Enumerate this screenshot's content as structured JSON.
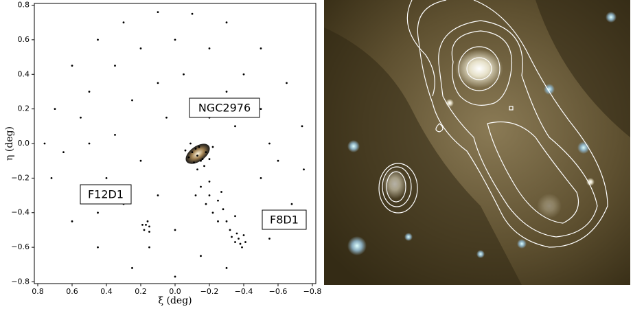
{
  "chart_data": {
    "type": "scatter",
    "xlabel": "ξ (deg)",
    "ylabel": "η (deg)",
    "annotations": [
      "NGC2976",
      "F12D1",
      "F8D1"
    ],
    "color": "#000000",
    "xlim": [
      0.82,
      -0.82
    ],
    "ylim": [
      -0.81,
      0.81
    ],
    "xticks": [
      0.8,
      0.6,
      0.4,
      0.2,
      {
        "value": 0,
        "label": "0.0"
      },
      {
        "value": -0.2,
        "label": "−0.2"
      },
      {
        "value": -0.4,
        "label": "−0.4"
      },
      {
        "value": -0.6,
        "label": "−0.6"
      },
      {
        "value": -0.8,
        "label": "−0.8"
      }
    ],
    "yticks": [
      {
        "value": -0.8,
        "label": "−0.8"
      },
      {
        "value": -0.6,
        "label": "−0.6"
      },
      {
        "value": -0.4,
        "label": "−0.4"
      },
      {
        "value": -0.2,
        "label": "−0.2"
      },
      {
        "value": 0,
        "label": "0.0"
      },
      0.2,
      0.4,
      0.6,
      0.8
    ],
    "x": [
      0.7,
      0.6,
      0.45,
      0.3,
      0.1,
      -0.1,
      -0.3,
      -0.5,
      -0.65,
      -0.74,
      -0.75,
      -0.68,
      -0.55,
      -0.3,
      0,
      0.25,
      0.45,
      0.6,
      0.72,
      0.76,
      0.5,
      0.35,
      0.2,
      0,
      -0.2,
      -0.4,
      -0.5,
      -0.55,
      -0.5,
      0.5,
      0.4,
      0.3,
      0.55,
      0.25,
      0.1,
      -0.05,
      -0.3,
      -0.35,
      0.35,
      0.2,
      0.1,
      0,
      -0.15,
      0.15,
      0.45,
      -0.6,
      0.65,
      -0.2,
      0.05,
      -0.13,
      -0.1,
      -0.16,
      -0.12,
      -0.15,
      -0.08,
      -0.18,
      -0.11,
      -0.14,
      -0.2,
      -0.06,
      -0.17,
      -0.09,
      -0.13,
      -0.22,
      -0.15,
      -0.2,
      -0.18,
      -0.25,
      -0.22,
      -0.28,
      -0.3,
      -0.25,
      -0.32,
      -0.12,
      -0.27,
      -0.35,
      -0.2,
      -0.37,
      -0.35,
      -0.4,
      -0.38,
      -0.33,
      -0.41,
      -0.36,
      -0.39,
      0.17,
      0.15,
      0.18,
      0.16,
      0.19,
      0.15
    ],
    "y": [
      0.2,
      0.45,
      0.6,
      0.7,
      0.76,
      0.75,
      0.7,
      0.55,
      0.35,
      0.1,
      -0.15,
      -0.35,
      -0.55,
      -0.72,
      -0.77,
      -0.72,
      -0.6,
      -0.45,
      -0.2,
      0,
      0.3,
      0.45,
      0.55,
      0.6,
      0.55,
      0.4,
      0.2,
      0,
      -0.2,
      0,
      -0.2,
      -0.35,
      0.15,
      0.25,
      0.35,
      0.4,
      0.3,
      0.1,
      0.05,
      -0.1,
      -0.3,
      -0.5,
      -0.65,
      -0.6,
      -0.4,
      -0.1,
      -0.05,
      0.15,
      0.15,
      -0.07,
      -0.05,
      -0.09,
      -0.03,
      -0.1,
      -0.08,
      -0.05,
      -0.11,
      -0.02,
      -0.09,
      -0.04,
      -0.13,
      0,
      -0.15,
      -0.02,
      -0.25,
      -0.3,
      -0.35,
      -0.33,
      -0.4,
      -0.38,
      -0.45,
      -0.45,
      -0.5,
      -0.3,
      -0.28,
      -0.42,
      -0.22,
      -0.55,
      -0.57,
      -0.53,
      -0.58,
      -0.54,
      -0.57,
      -0.52,
      -0.6,
      -0.47,
      -0.48,
      -0.5,
      -0.45,
      -0.47,
      -0.51
    ]
  }
}
